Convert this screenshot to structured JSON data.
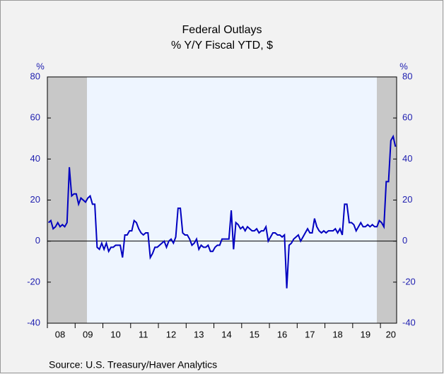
{
  "chart_data": {
    "type": "line",
    "title": "Federal Outlays",
    "subtitle": "% Y/Y   Fiscal YTD, $",
    "y_label": "%",
    "y2_label": "%",
    "source": "Source:  U.S. Treasury/Haver Analytics",
    "categories": [
      null,
      null,
      null,
      null,
      null,
      "08",
      null,
      null,
      null,
      null,
      null,
      null,
      null,
      null,
      null,
      null,
      null,
      "09",
      null,
      null,
      null,
      null,
      null,
      null,
      null,
      null,
      null,
      null,
      null,
      "10",
      null,
      null,
      null,
      null,
      null,
      null,
      null,
      null,
      null,
      null,
      null,
      "11",
      null,
      null,
      null,
      null,
      null,
      null,
      null,
      null,
      null,
      null,
      null,
      "12",
      null,
      null,
      null,
      null,
      null,
      null,
      null,
      null,
      null,
      null,
      null,
      "13",
      null,
      null,
      null,
      null,
      null,
      null,
      null,
      null,
      null,
      null,
      null,
      "14",
      null,
      null,
      null,
      null,
      null,
      null,
      null,
      null,
      null,
      null,
      null,
      "15",
      null,
      null,
      null,
      null,
      null,
      null,
      null,
      null,
      null,
      null,
      null,
      "16",
      null,
      null,
      null,
      null,
      null,
      null,
      null,
      null,
      null,
      null,
      null,
      "17",
      null,
      null,
      null,
      null,
      null,
      null,
      null,
      null,
      null,
      null,
      null,
      "18",
      null,
      null,
      null,
      null,
      null,
      null,
      null,
      null,
      null,
      null,
      null,
      "19",
      null,
      null,
      null,
      null,
      null,
      null,
      null,
      null,
      null,
      null,
      "20",
      null,
      null
    ],
    "series": [
      {
        "name": "Federal Outlays",
        "color": "#0000c0",
        "values": [
          9,
          10,
          6,
          7,
          9,
          7,
          8,
          7,
          9,
          36,
          22,
          23,
          23,
          18,
          21,
          20,
          19,
          21,
          22,
          18,
          18,
          -3,
          -4,
          -1,
          -4,
          -1,
          -5,
          -3,
          -3,
          -2,
          -2,
          -2,
          -8,
          3,
          3,
          5,
          5,
          10,
          9,
          6,
          4,
          3,
          4,
          4,
          -8,
          -6,
          -3,
          -3,
          -2,
          -1,
          0,
          -3,
          0,
          1,
          -1,
          2,
          16,
          16,
          4,
          3,
          3,
          1,
          -2,
          -1,
          1,
          -4,
          -2,
          -3,
          -3,
          -2,
          -5,
          -5,
          -3,
          -2,
          -2,
          1,
          1,
          1,
          1,
          15,
          -4,
          9,
          8,
          6,
          7,
          5,
          7,
          6,
          5,
          5,
          6,
          4,
          5,
          5,
          7,
          0,
          2,
          4,
          4,
          3,
          3,
          2,
          3,
          -23,
          -2,
          -1,
          1,
          2,
          3,
          0,
          2,
          4,
          6,
          4,
          4,
          11,
          7,
          5,
          4,
          5,
          4,
          5,
          5,
          5,
          6,
          4,
          6,
          3,
          18,
          18,
          9,
          9,
          8,
          5,
          7,
          9,
          7,
          7,
          8,
          7,
          8,
          7,
          7,
          10,
          9,
          7,
          29,
          29,
          49,
          51,
          46
        ]
      }
    ],
    "ylim": [
      -40,
      80
    ],
    "yticks": [
      -40,
      -20,
      0,
      20,
      40,
      60,
      80
    ],
    "y2lim": [
      -40,
      80
    ],
    "y2ticks": [
      -40,
      -20,
      0,
      20,
      40,
      60,
      80
    ]
  }
}
